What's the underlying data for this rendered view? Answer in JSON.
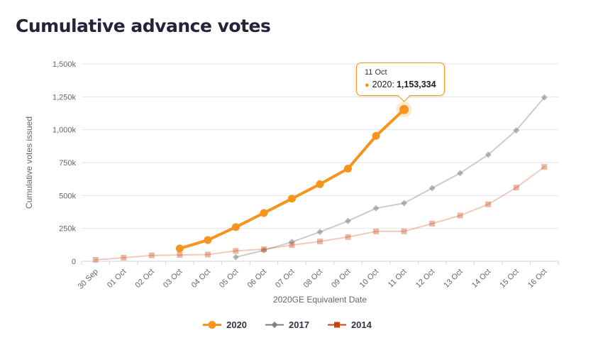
{
  "page": {
    "title": "Cumulative advance votes"
  },
  "colors": {
    "accent_2020": "#f7941e",
    "series_2017": "#7f7f7f",
    "series_2014": "#c8440e",
    "grid": "#e6e6e6",
    "axis_line": "#ccd6eb",
    "text_muted": "#666666",
    "title_text": "#232339",
    "legend_text": "#333344",
    "tooltip_border": "#f7941e"
  },
  "tooltip": {
    "date": "11 Oct",
    "series_label": "2020:",
    "value": "1,153,334"
  },
  "chart_data": {
    "type": "line",
    "title": "Cumulative advance votes",
    "xlabel": "2020GE Equivalent Date",
    "ylabel": "Cumulative votes issued",
    "ylim": [
      0,
      1500000
    ],
    "grid": "horizontal",
    "legend_position": "bottom-center",
    "categories": [
      "30 Sep",
      "01 Oct",
      "02 Oct",
      "03 Oct",
      "04 Oct",
      "05 Oct",
      "06 Oct",
      "07 Oct",
      "08 Oct",
      "09 Oct",
      "10 Oct",
      "11 Oct",
      "12 Oct",
      "13 Oct",
      "14 Oct",
      "15 Oct",
      "16 Oct"
    ],
    "yticks": [
      {
        "label": "0",
        "value": 0
      },
      {
        "label": "250k",
        "value": 250000
      },
      {
        "label": "500k",
        "value": 500000
      },
      {
        "label": "750k",
        "value": 750000
      },
      {
        "label": "1,000k",
        "value": 1000000
      },
      {
        "label": "1,250k",
        "value": 1250000
      },
      {
        "label": "1,500k",
        "value": 1500000
      }
    ],
    "series": [
      {
        "name": "2020",
        "color": "#f7941e",
        "marker": "circle",
        "line_width": 4,
        "values": [
          null,
          null,
          null,
          97000,
          161000,
          260000,
          367000,
          476000,
          586000,
          704000,
          953000,
          1153334,
          null,
          null,
          null,
          null,
          null
        ]
      },
      {
        "name": "2017",
        "color": "#7f7f7f",
        "marker": "diamond",
        "line_width": 2,
        "values": [
          null,
          null,
          null,
          null,
          null,
          32000,
          83000,
          147000,
          223000,
          306000,
          403000,
          442000,
          556000,
          670000,
          810000,
          995000,
          1245000
        ]
      },
      {
        "name": "2014",
        "color": "#c8440e",
        "marker": "square",
        "line_width": 2,
        "values": [
          11000,
          27000,
          45000,
          48000,
          51000,
          79000,
          92000,
          123000,
          151000,
          184000,
          227000,
          227000,
          286000,
          348000,
          433000,
          560000,
          717000
        ]
      }
    ],
    "hover": {
      "series": "2020",
      "category": "11 Oct",
      "value": 1153334,
      "value_label": "1,153,334"
    }
  }
}
